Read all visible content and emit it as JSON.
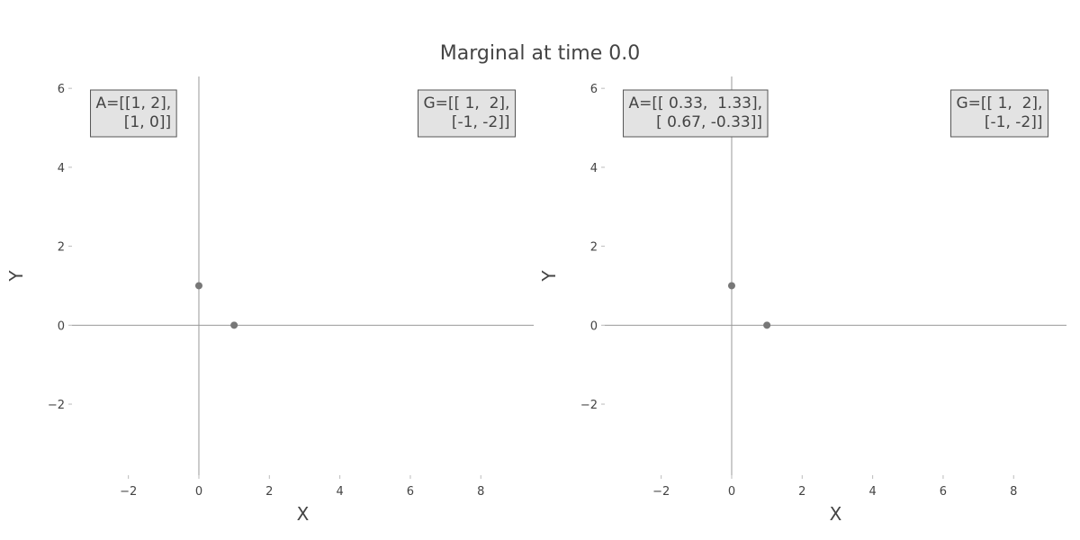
{
  "title": "Marginal at time 0.0",
  "colors": {
    "points": "#777777",
    "axis_lines": "#999999",
    "annotation_bg": "#e3e3e3",
    "annotation_border": "#555555",
    "text": "#444444"
  },
  "chart_data": [
    {
      "type": "scatter",
      "xlabel": "X",
      "ylabel": "Y",
      "xlim": [
        -3.6,
        9.5
      ],
      "ylim": [
        -3.8,
        6.3
      ],
      "xticks": [
        -2,
        0,
        2,
        4,
        6,
        8
      ],
      "yticks": [
        -2,
        0,
        2,
        4,
        6
      ],
      "xtick_labels": [
        "−2",
        "0",
        "2",
        "4",
        "6",
        "8"
      ],
      "ytick_labels": [
        "−2",
        "0",
        "2",
        "4",
        "6"
      ],
      "grid": false,
      "zero_lines": true,
      "points": [
        {
          "x": 0,
          "y": 1
        },
        {
          "x": 1,
          "y": 0
        }
      ],
      "annotations": [
        {
          "position": "top-left",
          "lines": [
            "A=[[1, 2],",
            "[1, 0]]"
          ]
        },
        {
          "position": "top-right",
          "lines": [
            "G=[[ 1,  2],",
            "[-1, -2]]"
          ]
        }
      ]
    },
    {
      "type": "scatter",
      "xlabel": "X",
      "ylabel": "Y",
      "xlim": [
        -3.6,
        9.5
      ],
      "ylim": [
        -3.8,
        6.3
      ],
      "xticks": [
        -2,
        0,
        2,
        4,
        6,
        8
      ],
      "yticks": [
        -2,
        0,
        2,
        4,
        6
      ],
      "xtick_labels": [
        "−2",
        "0",
        "2",
        "4",
        "6",
        "8"
      ],
      "ytick_labels": [
        "−2",
        "0",
        "2",
        "4",
        "6"
      ],
      "grid": false,
      "zero_lines": true,
      "points": [
        {
          "x": 0,
          "y": 1
        },
        {
          "x": 1,
          "y": 0
        }
      ],
      "annotations": [
        {
          "position": "top-left",
          "lines": [
            "A=[[ 0.33,  1.33],",
            "[ 0.67, -0.33]]"
          ]
        },
        {
          "position": "top-right",
          "lines": [
            "G=[[ 1,  2],",
            "[-1, -2]]"
          ]
        }
      ]
    }
  ]
}
